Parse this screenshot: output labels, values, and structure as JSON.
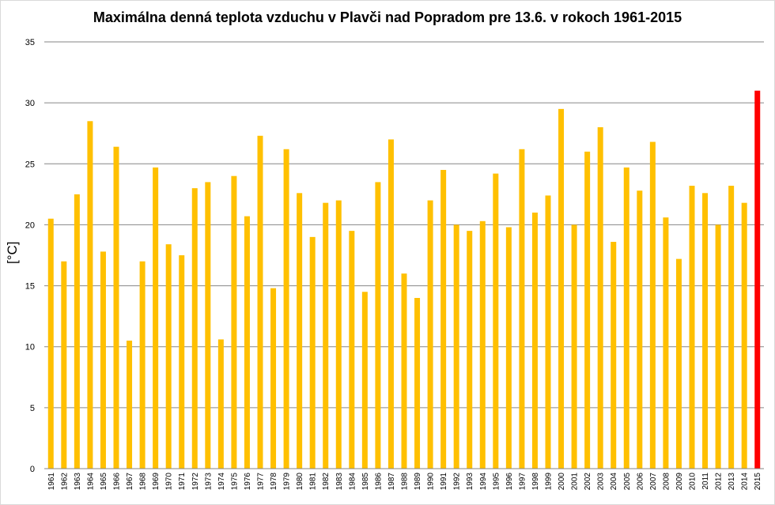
{
  "chart_data": {
    "type": "bar",
    "title": "Maximálna denná teplota vzduchu v Plavči nad Popradom pre 13.6. v rokoch 1961-2015",
    "xlabel": "",
    "ylabel": "[°C]",
    "ylim": [
      0,
      35
    ],
    "yticks": [
      0,
      5,
      10,
      15,
      20,
      25,
      30,
      35
    ],
    "grid": true,
    "colors": {
      "bar": "#FFC000",
      "highlight": "#FF0000",
      "grid": "#868686"
    },
    "highlight_index": 54,
    "categories": [
      "1961",
      "1962",
      "1963",
      "1964",
      "1965",
      "1966",
      "1967",
      "1968",
      "1969",
      "1970",
      "1971",
      "1972",
      "1973",
      "1974",
      "1975",
      "1976",
      "1977",
      "1978",
      "1979",
      "1980",
      "1981",
      "1982",
      "1983",
      "1984",
      "1985",
      "1986",
      "1987",
      "1988",
      "1989",
      "1990",
      "1991",
      "1992",
      "1993",
      "1994",
      "1995",
      "1996",
      "1997",
      "1998",
      "1999",
      "2000",
      "2001",
      "2002",
      "2003",
      "2004",
      "2005",
      "2006",
      "2007",
      "2008",
      "2009",
      "2010",
      "2011",
      "2012",
      "2013",
      "2014",
      "2015"
    ],
    "values": [
      20.5,
      17.0,
      22.5,
      28.5,
      17.8,
      26.4,
      10.5,
      17.0,
      24.7,
      18.4,
      17.5,
      23.0,
      23.5,
      10.6,
      24.0,
      20.7,
      27.3,
      14.8,
      26.2,
      22.6,
      19.0,
      21.8,
      22.0,
      19.5,
      14.5,
      23.5,
      27.0,
      16.0,
      14.0,
      22.0,
      24.5,
      20.0,
      19.5,
      20.3,
      24.2,
      19.8,
      26.2,
      21.0,
      22.4,
      29.5,
      20.0,
      26.0,
      28.0,
      18.6,
      24.7,
      22.8,
      26.8,
      20.6,
      17.2,
      23.2,
      22.6,
      20.0,
      23.2,
      21.8,
      31.0
    ]
  }
}
